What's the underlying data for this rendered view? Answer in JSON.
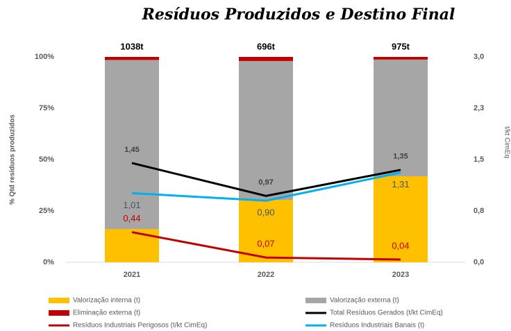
{
  "chart_data": {
    "type": "bar",
    "stacked": true,
    "title": "Resíduos Produzidos e Destino Final",
    "y_label": "% Qtd resíduos produzidos",
    "y2_label": "t/kt CimEq",
    "categories": [
      "2021",
      "2022",
      "2023"
    ],
    "ylim": [
      0,
      100
    ],
    "yticks": [
      {
        "value": 0,
        "label": "0%"
      },
      {
        "value": 25,
        "label": "25%"
      },
      {
        "value": 50,
        "label": "50%"
      },
      {
        "value": 75,
        "label": "75%"
      },
      {
        "value": 100,
        "label": "100%"
      }
    ],
    "y2lim": [
      0,
      3
    ],
    "y2ticks": [
      {
        "value": 0,
        "label": "0,0"
      },
      {
        "value": 0.75,
        "label": "0,8"
      },
      {
        "value": 1.5,
        "label": "1,5"
      },
      {
        "value": 2.25,
        "label": "2,3"
      },
      {
        "value": 3,
        "label": "3,0"
      }
    ],
    "grid": false,
    "totals": {
      "values": [
        1038,
        696,
        975
      ],
      "value_labels": [
        "1038t",
        "696t",
        "975t"
      ]
    },
    "series": [
      {
        "name": "Valorização interna (t)",
        "type": "bar",
        "color": "#ffc000",
        "values": [
          16.2,
          30.4,
          41.9
        ]
      },
      {
        "name": "Valorização externa (t)",
        "type": "bar",
        "color": "#a6a6a6",
        "values": [
          82.3,
          67.6,
          56.8
        ]
      },
      {
        "name": "Eliminação externa (t)",
        "type": "bar",
        "color": "#c00000",
        "values": [
          1.5,
          2.0,
          1.3
        ]
      },
      {
        "name": "Total Resíduos Gerados (t/kt CimEq)",
        "type": "line",
        "axis": "y2",
        "color": "#000000",
        "label_color": "#404040",
        "label_pos": "above",
        "values": [
          1.45,
          0.97,
          1.35
        ],
        "value_labels": [
          "1,45",
          "0,97",
          "1,35"
        ]
      },
      {
        "name": "Resíduos Industriais Perigosos (t/kt CimEq)",
        "type": "line",
        "axis": "y2",
        "color": "#c00000",
        "label_color": "#c00000",
        "label_pos": "above",
        "values": [
          0.44,
          0.07,
          0.04
        ],
        "value_labels": [
          "0,44",
          "0,07",
          "0,04"
        ]
      },
      {
        "name": "Resíduos Industriais Banais (t)",
        "type": "line",
        "axis": "y2",
        "color": "#00b0f0",
        "label_color": "#44546a",
        "label_pos": "below",
        "values": [
          1.01,
          0.9,
          1.31
        ],
        "value_labels": [
          "1,01",
          "0,90",
          "1,31"
        ]
      }
    ]
  }
}
